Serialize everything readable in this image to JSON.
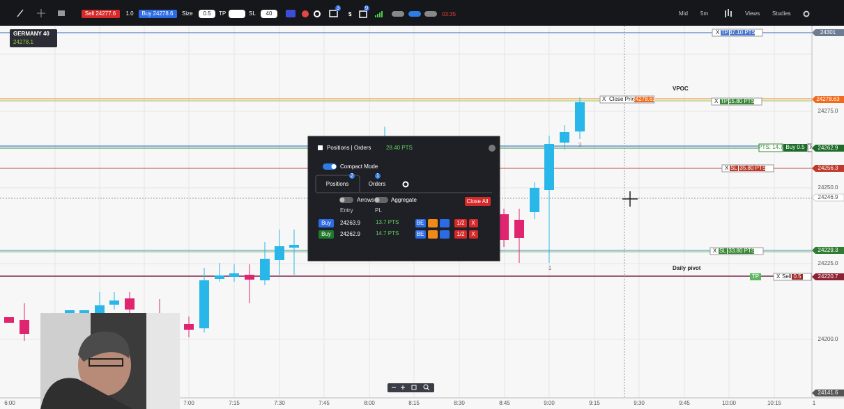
{
  "toolbar": {
    "sell": "Sell 24277.6",
    "quantity": "1.0",
    "buy": "Buy 24278.6",
    "size_label": "Size",
    "size": "0.5",
    "tp_label": "TP",
    "sl_label": "SL",
    "sl": "40",
    "badges": [
      "3",
      "9"
    ],
    "clock": "03:35",
    "menus": [
      "Mid",
      "5m",
      "Views",
      "Studies"
    ]
  },
  "instrument": {
    "name": "GERMANY 40",
    "price": "24278.1"
  },
  "annotations": [
    "VPOC",
    "Daily pivot"
  ],
  "candle_labels": [
    "3",
    "1"
  ],
  "price_axis": [
    "24301",
    "24278.63",
    "24275.0",
    "24262.9",
    "24256.3",
    "24250.0",
    "24246.9",
    "24229.3",
    "24225.0",
    "24220.7",
    "24200.0",
    "24141.6"
  ],
  "time_axis": [
    "6:00",
    "7:00",
    "7:15",
    "7:30",
    "7:45",
    "8:00",
    "8:15",
    "8:30",
    "8:45",
    "9:00",
    "9:15",
    "9:30",
    "9:45",
    "10:00",
    "10:15",
    "1"
  ],
  "order_lines": {
    "tp_top": {
      "close": "X",
      "kind": "TP",
      "pts": "37.10 PTS"
    },
    "close_price": {
      "close": "X",
      "label": "Close Price",
      "price": "24278.63"
    },
    "tp_mid": {
      "close": "X",
      "kind": "TP",
      "pts": "15.80 PTS"
    },
    "position": {
      "pts": "PTS: 14.7",
      "side": "Buy 0.5",
      "close": "X"
    },
    "sl_top": {
      "close": "X",
      "kind": "SL",
      "pts": "-35.80 PTS"
    },
    "sl_bottom": {
      "close": "X",
      "kind": "SL",
      "pts": "-33.80 PTS"
    },
    "pivot_tp": "TP",
    "sell_order": {
      "close": "X",
      "side": "Sell",
      "size": "0.5"
    }
  },
  "panel": {
    "title": "Positions | Orders",
    "total": "28.40 PTS",
    "compact_mode": "Compact Mode",
    "tabs": [
      {
        "label": "Positions",
        "badge": "2"
      },
      {
        "label": "Orders",
        "badge": "1"
      }
    ],
    "toggles": [
      "Arrows",
      "Aggregate"
    ],
    "close_all": "Close All",
    "columns": [
      "Entry",
      "PL"
    ],
    "rows": [
      {
        "side": "Buy",
        "entry": "24263.9",
        "pl": "13.7 PTS",
        "be": "BE",
        "half": "1/2",
        "close": "X"
      },
      {
        "side": "Buy",
        "entry": "24262.9",
        "pl": "14.7 PTS",
        "be": "BE",
        "half": "1/2",
        "close": "X"
      }
    ]
  }
}
